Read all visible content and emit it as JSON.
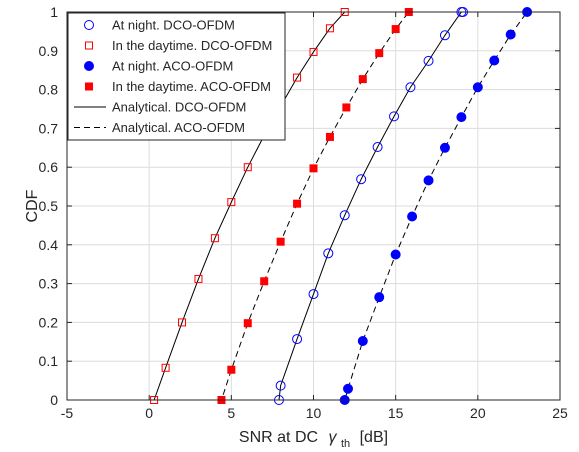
{
  "chart_data": {
    "type": "line",
    "xlabel": "SNR at DC γ_th [dB]",
    "xlabel_main": "SNR at DC",
    "xlabel_symbol": "γ",
    "xlabel_subscript": "th",
    "xlabel_unit": "[dB]",
    "ylabel": "CDF",
    "xlim": [
      -5,
      25
    ],
    "ylim": [
      0,
      1
    ],
    "xticks": [
      -5,
      0,
      5,
      10,
      15,
      20,
      25
    ],
    "yticks": [
      0,
      0.1,
      0.2,
      0.3,
      0.4,
      0.5,
      0.6,
      0.7,
      0.8,
      0.9,
      1
    ],
    "grid": true,
    "legend_position": "top-left",
    "series": [
      {
        "name": "At night. DCO-OFDM",
        "color": "#0000ff",
        "marker": "circle-open",
        "x": [
          7.9,
          8,
          9,
          10,
          10.9,
          11.9,
          12.9,
          13.9,
          14.9,
          15.9,
          17,
          18,
          19,
          19.1
        ],
        "y": [
          0,
          0.037,
          0.157,
          0.273,
          0.378,
          0.476,
          0.569,
          0.652,
          0.731,
          0.806,
          0.874,
          0.94,
          1,
          1
        ]
      },
      {
        "name": "In the daytime. DCO-OFDM",
        "color": "#ff0000",
        "marker": "square-open",
        "x": [
          0.3,
          1,
          2,
          3,
          4,
          5,
          6,
          7,
          8,
          9,
          10,
          11,
          11.9
        ],
        "y": [
          0,
          0.083,
          0.2,
          0.312,
          0.417,
          0.51,
          0.6,
          0.682,
          0.757,
          0.831,
          0.897,
          0.958,
          1
        ]
      },
      {
        "name": "At night. ACO-OFDM",
        "color": "#0000ff",
        "marker": "circle-filled",
        "x": [
          11.9,
          12.1,
          13,
          14,
          15,
          16,
          17,
          18,
          19,
          20,
          21,
          22,
          23
        ],
        "y": [
          0,
          0.029,
          0.152,
          0.265,
          0.375,
          0.473,
          0.566,
          0.65,
          0.729,
          0.806,
          0.875,
          0.942,
          1
        ]
      },
      {
        "name": "In the daytime. ACO-OFDM",
        "color": "#ff0000",
        "marker": "square-filled",
        "x": [
          4.4,
          5,
          6,
          7,
          8,
          9,
          10,
          11,
          12,
          13,
          14,
          15,
          15.8
        ],
        "y": [
          0,
          0.078,
          0.198,
          0.306,
          0.408,
          0.506,
          0.597,
          0.678,
          0.754,
          0.827,
          0.894,
          0.956,
          1
        ]
      },
      {
        "name": "Analytical. DCO-OFDM",
        "color": "#000000",
        "line": "solid"
      },
      {
        "name": "Analytical. ACO-OFDM",
        "color": "#000000",
        "line": "dashed"
      }
    ]
  }
}
